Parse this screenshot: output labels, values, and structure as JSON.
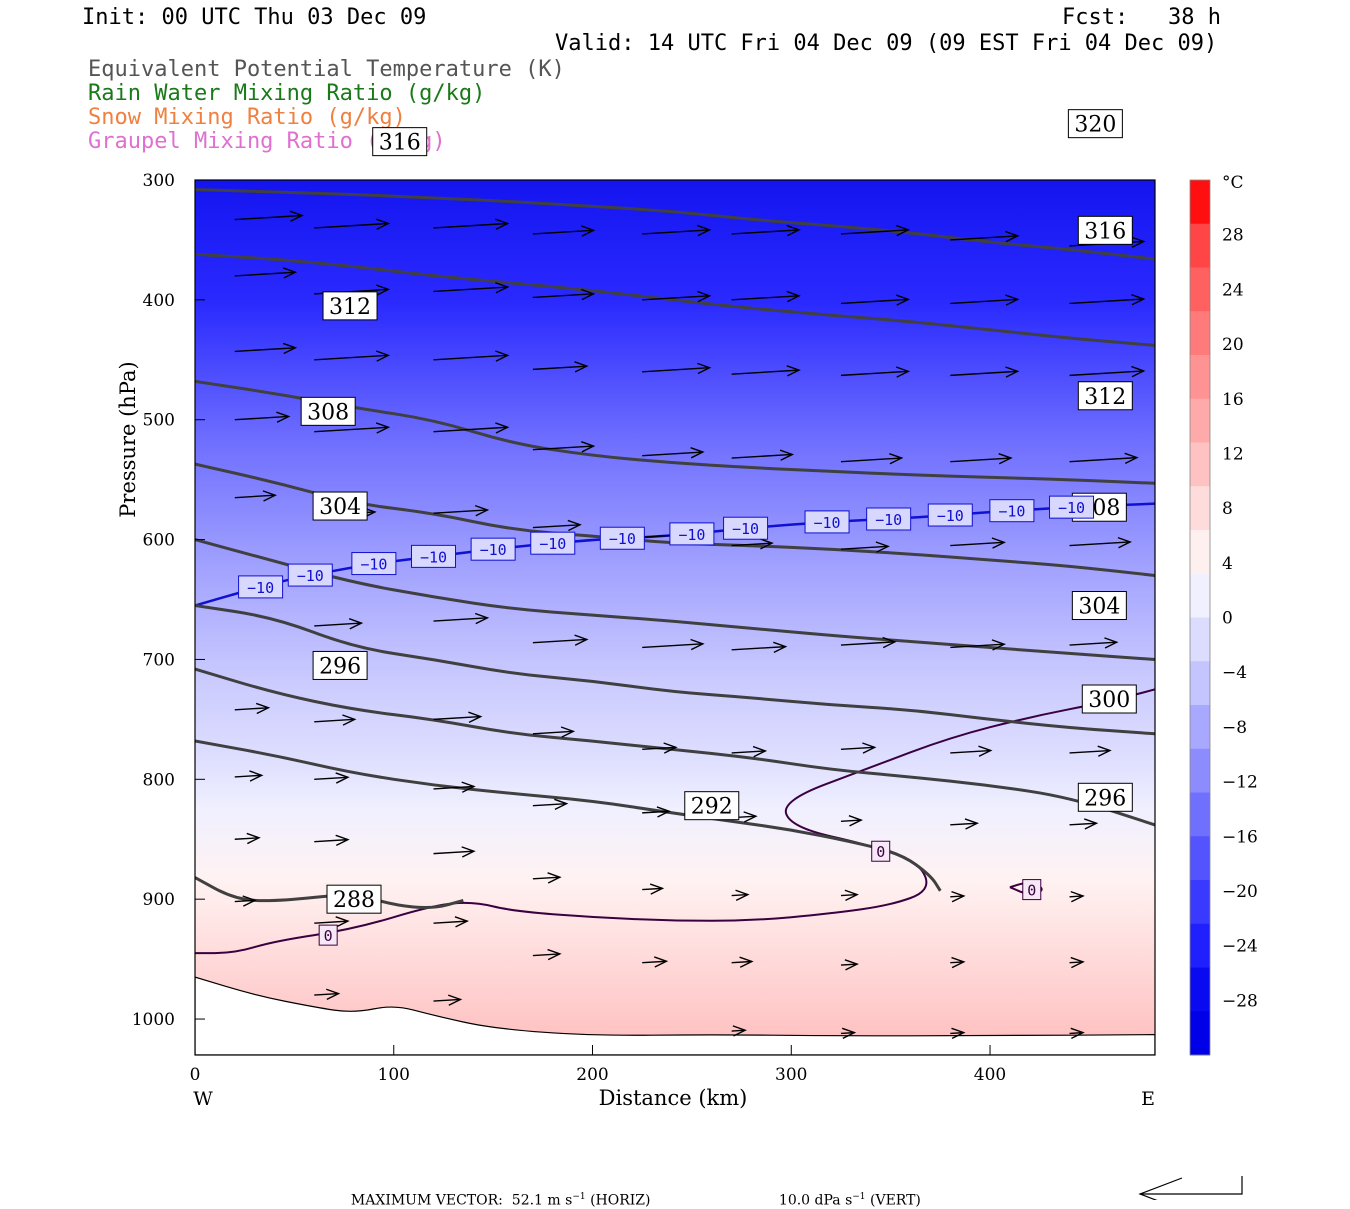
{
  "header": {
    "init": "Init: 00 UTC Thu 03 Dec 09",
    "fcst": "Fcst:   38 h",
    "valid": "Valid: 14 UTC Fri 04 Dec 09 (09 EST Fri 04 Dec 09)"
  },
  "legend": [
    {
      "label": "Equivalent Potential Temperature (K)",
      "color": "#555555"
    },
    {
      "label": "Rain Water Mixing Ratio (g/kg)",
      "color": "#1a7a1a"
    },
    {
      "label": "Snow Mixing Ratio (g/kg)",
      "color": "#f08040"
    },
    {
      "label": "Graupel Mixing Ratio (g/kg)",
      "color": "#e070d0"
    }
  ],
  "chart_data": {
    "type": "contour-cross-section",
    "xlabel": "Distance (km)",
    "ylabel": "Pressure (hPa)",
    "xlim": [
      0,
      483
    ],
    "ylim": [
      300,
      1030
    ],
    "x_ticks": [
      "0",
      "100",
      "200",
      "300",
      "400"
    ],
    "y_ticks": [
      "300",
      "400",
      "500",
      "600",
      "700",
      "800",
      "900",
      "1000"
    ],
    "x_end_labels": {
      "left": "W",
      "right": "E"
    },
    "colorbar": {
      "unit": "°C",
      "ticks": [
        "28",
        "24",
        "20",
        "16",
        "12",
        "8",
        "4",
        "0",
        "−4",
        "−8",
        "−12",
        "−16",
        "−20",
        "−24",
        "−28"
      ],
      "colors": [
        "#ff0f0f",
        "#ff4545",
        "#ff6060",
        "#ff7a7a",
        "#ff9292",
        "#ffaaaa",
        "#ffc2c2",
        "#ffdcdc",
        "#fff0f0",
        "#f0f0ff",
        "#dcdcff",
        "#c4c4ff",
        "#a8a8ff",
        "#8c8cff",
        "#7070ff",
        "#5454ff",
        "#3a3aff",
        "#2020ff",
        "#0a0af0",
        "#0000e8"
      ]
    },
    "theta_e_contours": [
      {
        "level": 288,
        "label": "288",
        "points": [
          [
            0,
            882
          ],
          [
            20,
            900
          ],
          [
            40,
            902
          ],
          [
            80,
            895
          ],
          [
            100,
            905
          ],
          [
            120,
            908
          ],
          [
            135,
            901
          ]
        ]
      },
      {
        "level": 292,
        "label": "292",
        "points": [
          [
            0,
            768
          ],
          [
            40,
            780
          ],
          [
            80,
            795
          ],
          [
            120,
            805
          ],
          [
            160,
            812
          ],
          [
            200,
            818
          ],
          [
            240,
            828
          ],
          [
            270,
            835
          ],
          [
            300,
            842
          ],
          [
            330,
            852
          ],
          [
            355,
            862
          ],
          [
            370,
            880
          ],
          [
            375,
            893
          ]
        ]
      },
      {
        "level": 296,
        "label": "296",
        "points": [
          [
            0,
            708
          ],
          [
            40,
            728
          ],
          [
            80,
            742
          ],
          [
            120,
            750
          ],
          [
            160,
            762
          ],
          [
            200,
            768
          ],
          [
            240,
            775
          ],
          [
            280,
            782
          ],
          [
            320,
            792
          ],
          [
            360,
            798
          ],
          [
            400,
            805
          ],
          [
            440,
            815
          ],
          [
            483,
            838
          ]
        ]
      },
      {
        "level": 300,
        "label": "300",
        "points": [
          [
            0,
            655
          ],
          [
            40,
            665
          ],
          [
            80,
            690
          ],
          [
            120,
            700
          ],
          [
            160,
            712
          ],
          [
            200,
            718
          ],
          [
            240,
            727
          ],
          [
            280,
            732
          ],
          [
            320,
            738
          ],
          [
            360,
            742
          ],
          [
            400,
            750
          ],
          [
            440,
            757
          ],
          [
            483,
            762
          ]
        ]
      },
      {
        "level": 304,
        "label": "304",
        "points": [
          [
            0,
            600
          ],
          [
            40,
            618
          ],
          [
            80,
            636
          ],
          [
            120,
            648
          ],
          [
            160,
            658
          ],
          [
            200,
            663
          ],
          [
            240,
            668
          ],
          [
            280,
            674
          ],
          [
            320,
            680
          ],
          [
            360,
            685
          ],
          [
            400,
            690
          ],
          [
            440,
            695
          ],
          [
            483,
            700
          ]
        ]
      },
      {
        "level": 308,
        "label": "308",
        "points": [
          [
            0,
            537
          ],
          [
            40,
            552
          ],
          [
            80,
            570
          ],
          [
            120,
            578
          ],
          [
            160,
            592
          ],
          [
            200,
            597
          ],
          [
            240,
            603
          ],
          [
            280,
            605
          ],
          [
            320,
            608
          ],
          [
            360,
            612
          ],
          [
            400,
            617
          ],
          [
            440,
            622
          ],
          [
            483,
            630
          ]
        ]
      },
      {
        "level": 312,
        "label": "312",
        "points": [
          [
            0,
            468
          ],
          [
            40,
            478
          ],
          [
            80,
            490
          ],
          [
            120,
            500
          ],
          [
            160,
            520
          ],
          [
            200,
            530
          ],
          [
            240,
            536
          ],
          [
            280,
            540
          ],
          [
            320,
            543
          ],
          [
            360,
            546
          ],
          [
            400,
            548
          ],
          [
            440,
            550
          ],
          [
            483,
            553
          ]
        ]
      },
      {
        "level": 316,
        "label": "316",
        "points": [
          [
            0,
            362
          ],
          [
            40,
            366
          ],
          [
            80,
            372
          ],
          [
            120,
            380
          ],
          [
            160,
            386
          ],
          [
            200,
            392
          ],
          [
            240,
            400
          ],
          [
            280,
            407
          ],
          [
            320,
            413
          ],
          [
            360,
            418
          ],
          [
            400,
            425
          ],
          [
            440,
            432
          ],
          [
            483,
            438
          ]
        ]
      },
      {
        "level": 320,
        "label": "320",
        "points": [
          [
            0,
            308
          ],
          [
            40,
            310
          ],
          [
            80,
            312
          ],
          [
            120,
            315
          ],
          [
            160,
            318
          ],
          [
            200,
            322
          ],
          [
            240,
            326
          ],
          [
            280,
            333
          ],
          [
            320,
            338
          ],
          [
            360,
            344
          ],
          [
            400,
            352
          ],
          [
            440,
            358
          ],
          [
            483,
            366
          ]
        ]
      }
    ],
    "isotherm_minus10": {
      "label": "−10",
      "points": [
        [
          0,
          655
        ],
        [
          25,
          643
        ],
        [
          50,
          632
        ],
        [
          90,
          620
        ],
        [
          120,
          614
        ],
        [
          160,
          606
        ],
        [
          200,
          600
        ],
        [
          240,
          597
        ],
        [
          280,
          590
        ],
        [
          320,
          585
        ],
        [
          360,
          582
        ],
        [
          400,
          577
        ],
        [
          440,
          573
        ],
        [
          483,
          570
        ]
      ]
    },
    "isotherm_minus10_label_x": [
      33,
      58,
      90,
      120,
      150,
      180,
      215,
      250,
      277,
      318,
      349,
      380,
      411,
      441
    ],
    "isotherm_0_label": "0",
    "isotherm_0_segments": [
      [
        [
          0,
          945
        ],
        [
          20,
          945
        ],
        [
          40,
          935
        ],
        [
          80,
          925
        ],
        [
          120,
          905
        ],
        [
          140,
          902
        ],
        [
          160,
          910
        ],
        [
          200,
          915
        ],
        [
          240,
          918
        ],
        [
          280,
          918
        ],
        [
          320,
          912
        ],
        [
          350,
          905
        ],
        [
          370,
          893
        ],
        [
          365,
          870
        ],
        [
          340,
          855
        ],
        [
          300,
          840
        ],
        [
          295,
          818
        ],
        [
          340,
          790
        ],
        [
          380,
          765
        ],
        [
          420,
          748
        ],
        [
          460,
          735
        ],
        [
          483,
          725
        ]
      ],
      [
        [
          410,
          890
        ],
        [
          420,
          885
        ],
        [
          428,
          892
        ],
        [
          420,
          897
        ],
        [
          410,
          890
        ]
      ]
    ],
    "isotherm_0_label_points": [
      [
        67,
        930
      ],
      [
        345,
        860
      ],
      [
        421,
        892
      ]
    ],
    "terrain": [
      [
        0,
        965
      ],
      [
        30,
        980
      ],
      [
        60,
        990
      ],
      [
        80,
        995
      ],
      [
        100,
        988
      ],
      [
        120,
        997
      ],
      [
        150,
        1008
      ],
      [
        200,
        1014
      ],
      [
        260,
        1013
      ],
      [
        320,
        1014
      ],
      [
        400,
        1014
      ],
      [
        483,
        1013
      ]
    ],
    "wind_vectors_note": "arrows as drawn",
    "footer": {
      "max_vector_label": "MAXIMUM VECTOR:",
      "horiz": "52.1 m s",
      "horiz_unit": "(HORIZ)",
      "vert": "10.0 dPa s",
      "vert_unit": "(VERT)"
    }
  }
}
